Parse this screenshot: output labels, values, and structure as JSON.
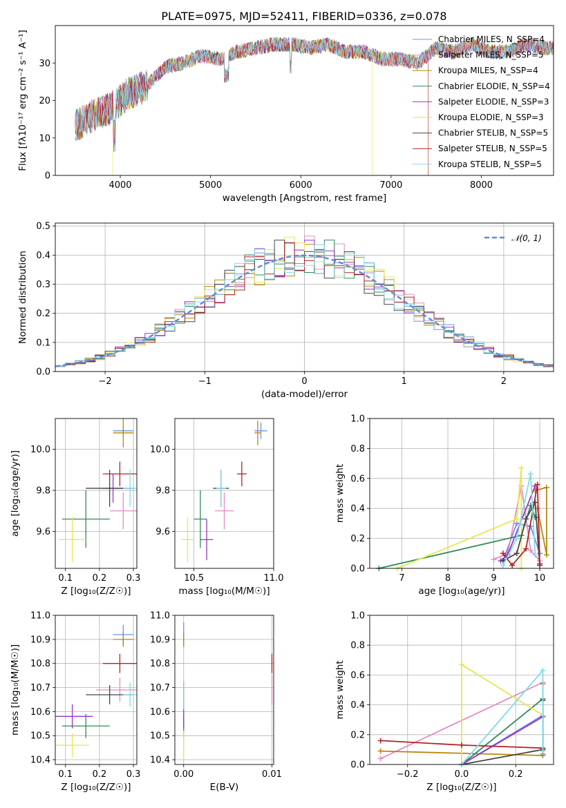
{
  "colors": [
    "#6495ed",
    "#e78ac3",
    "#b8860b",
    "#2e8b57",
    "#9932cc",
    "#e6e650",
    "#444444",
    "#b22222",
    "#7fdbe8"
  ],
  "chart_data": [
    {
      "type": "line",
      "panel": "spectrum",
      "title": "PLATE=0975, MJD=52411, FIBERID=0336, z=0.078",
      "xlabel": "wavelength [Angstrom, rest frame]",
      "ylabel": "Flux [fλ10⁻¹⁷ erg cm⁻² s⁻¹ A⁻¹]",
      "xlim": [
        3280,
        8800
      ],
      "ylim": [
        0,
        40
      ],
      "xticks": [
        "4000",
        "5000",
        "6000",
        "7000",
        "8000"
      ],
      "yticks": [
        "0",
        "10",
        "20",
        "30"
      ],
      "grid": false,
      "legend_position": "top-right",
      "x": [
        3500,
        3700,
        3900,
        4100,
        4300,
        4500,
        4700,
        4900,
        5100,
        5300,
        5500,
        5700,
        5900,
        6100,
        6300,
        6500,
        6700,
        6900,
        7100,
        7300,
        7500,
        7700,
        7900,
        8100,
        8300,
        8500,
        8700
      ],
      "y": [
        13,
        16,
        18,
        22,
        24,
        29,
        30,
        32,
        31,
        33,
        34,
        35,
        35,
        34,
        35,
        33,
        33,
        31,
        31,
        30,
        34,
        33,
        35,
        33,
        33,
        35,
        34
      ],
      "legend": [
        "Chabrier MILES, N_SSP=4",
        "Salpeter MILES, N_SSP=5",
        "Kroupa MILES, N_SSP=4",
        "Chabrier ELODIE, N_SSP=4",
        "Salpeter ELODIE, N_SSP=3",
        "Kroupa ELODIE, N_SSP=3",
        "Chabrier STELIB, N_SSP=5",
        "Salpeter STELIB, N_SSP=5",
        "Kroupa STELIB, N_SSP=5"
      ]
    },
    {
      "type": "histogram",
      "panel": "residuals",
      "xlabel": "(data-model)/error",
      "ylabel": "Normed distribution",
      "xlim": [
        -2.5,
        2.5
      ],
      "ylim": [
        0,
        0.51
      ],
      "xticks": [
        "−2",
        "−1",
        "0",
        "1",
        "2"
      ],
      "yticks": [
        "0.0",
        "0.1",
        "0.2",
        "0.3",
        "0.4",
        "0.5"
      ],
      "grid": true,
      "legend_position": "top-right",
      "legend": [
        "𝒩(0, 1)"
      ],
      "bin_width": 0.1,
      "reference_curve": "normal(0,1)"
    },
    {
      "type": "scatter",
      "panel": "age-vs-Z",
      "xlabel": "Z [log₁₀(Z/Z☉)]",
      "ylabel": "age  [log₁₀(age/yr)]",
      "xlim": [
        0.07,
        0.31
      ],
      "ylim": [
        9.42,
        10.15
      ],
      "xticks": [
        "0.1",
        "0.2",
        "0.3"
      ],
      "yticks": [
        "9.6",
        "9.8",
        "10.0"
      ],
      "grid": true,
      "points": [
        {
          "x": 0.27,
          "y": 10.09,
          "xerr": 0.03,
          "yerr": 0.02
        },
        {
          "x": 0.27,
          "y": 9.7,
          "xerr": 0.04,
          "yerr": 0.09
        },
        {
          "x": 0.27,
          "y": 10.08,
          "xerr": 0.03,
          "yerr": 0.07
        },
        {
          "x": 0.16,
          "y": 9.66,
          "xerr": 0.07,
          "yerr": 0.14
        },
        {
          "x": 0.24,
          "y": 9.81,
          "xerr": 0.03,
          "yerr": 0.07
        },
        {
          "x": 0.12,
          "y": 9.56,
          "xerr": 0.04,
          "yerr": 0.11
        },
        {
          "x": 0.23,
          "y": 9.81,
          "xerr": 0.07,
          "yerr": 0.09
        },
        {
          "x": 0.26,
          "y": 9.88,
          "xerr": 0.05,
          "yerr": 0.06
        },
        {
          "x": 0.29,
          "y": 9.81,
          "xerr": 0.02,
          "yerr": 0.09
        }
      ]
    },
    {
      "type": "scatter",
      "panel": "age-vs-mass",
      "xlabel": "mass [log₁₀(M/M☉)]",
      "xlim": [
        10.38,
        11.0
      ],
      "ylim": [
        9.42,
        10.15
      ],
      "xticks": [
        "10.5",
        "11.0"
      ],
      "yticks": [
        "9.6",
        "9.8",
        "10.0"
      ],
      "grid": true,
      "points": [
        {
          "x": 10.92,
          "y": 10.09,
          "xerr": 0.04,
          "yerr": 0.04
        },
        {
          "x": 10.69,
          "y": 9.7,
          "xerr": 0.06,
          "yerr": 0.09
        },
        {
          "x": 10.9,
          "y": 10.08,
          "xerr": 0.02,
          "yerr": 0.06
        },
        {
          "x": 10.54,
          "y": 9.66,
          "xerr": 0.04,
          "yerr": 0.14
        },
        {
          "x": 10.58,
          "y": 9.56,
          "xerr": 0.04,
          "yerr": 0.1
        },
        {
          "x": 10.46,
          "y": 9.56,
          "xerr": 0.04,
          "yerr": 0.11
        },
        {
          "x": 10.67,
          "y": 9.81,
          "xerr": 0.05,
          "yerr": 0.09
        },
        {
          "x": 10.8,
          "y": 9.88,
          "xerr": 0.03,
          "yerr": 0.06
        },
        {
          "x": 10.67,
          "y": 9.81,
          "xerr": 0.03,
          "yerr": 0.09
        }
      ]
    },
    {
      "type": "line",
      "panel": "weight-vs-age",
      "xlabel": "age  [log₁₀(age/yr)]",
      "ylabel": "mass weight",
      "xlim": [
        6.3,
        10.3
      ],
      "ylim": [
        0,
        1.0
      ],
      "xticks": [
        "7",
        "8",
        "9",
        "10"
      ],
      "yticks": [
        "0.0",
        "0.2",
        "0.4",
        "0.6",
        "0.8",
        "1.0"
      ],
      "grid": true,
      "series": [
        {
          "x": [
            9.2,
            9.5,
            9.8,
            10.0
          ],
          "y": [
            0.05,
            0.3,
            0.28,
            0.1
          ]
        },
        {
          "x": [
            9.0,
            9.3,
            9.6,
            9.8,
            10.0
          ],
          "y": [
            0.06,
            0.1,
            0.55,
            0.12,
            0.05
          ]
        },
        {
          "x": [
            9.9,
            10.15,
            10.15,
            9.95
          ],
          "y": [
            0.52,
            0.54,
            0.09,
            0.4
          ]
        },
        {
          "x": [
            6.5,
            9.6,
            9.8,
            9.9
          ],
          "y": [
            0.0,
            0.22,
            0.42,
            0.34
          ]
        },
        {
          "x": [
            9.15,
            9.3,
            9.9
          ],
          "y": [
            0.05,
            0.09,
            0.55
          ]
        },
        {
          "x": [
            6.9,
            9.5,
            9.6,
            9.6
          ],
          "y": [
            0.0,
            0.33,
            0.67,
            0.0
          ]
        },
        {
          "x": [
            9.2,
            9.5,
            9.7,
            9.9,
            10.0
          ],
          "y": [
            0.05,
            0.1,
            0.33,
            0.44,
            0.02
          ]
        },
        {
          "x": [
            9.2,
            9.4,
            9.7,
            9.95,
            10.0
          ],
          "y": [
            0.1,
            0.02,
            0.13,
            0.56,
            0.03
          ]
        },
        {
          "x": [
            9.2,
            9.5,
            9.8,
            9.9
          ],
          "y": [
            0.02,
            0.2,
            0.63,
            0.09
          ]
        }
      ]
    },
    {
      "type": "scatter",
      "panel": "mass-vs-Z",
      "xlabel": "Z [log₁₀(Z/Z☉)]",
      "ylabel": "mass [log₁₀(M/M☉)]",
      "xlim": [
        0.07,
        0.31
      ],
      "ylim": [
        10.38,
        11.0
      ],
      "xticks": [
        "0.1",
        "0.2",
        "0.3"
      ],
      "yticks": [
        "10.4",
        "10.5",
        "10.6",
        "10.7",
        "10.8",
        "10.9",
        "11.0"
      ],
      "grid": true,
      "points": [
        {
          "x": 0.27,
          "y": 10.92,
          "xerr": 0.03,
          "yerr": 0.04
        },
        {
          "x": 0.26,
          "y": 10.69,
          "xerr": 0.07,
          "yerr": 0.05
        },
        {
          "x": 0.27,
          "y": 10.9,
          "xerr": 0.03,
          "yerr": 0.03
        },
        {
          "x": 0.16,
          "y": 10.54,
          "xerr": 0.07,
          "yerr": 0.05
        },
        {
          "x": 0.12,
          "y": 10.58,
          "xerr": 0.06,
          "yerr": 0.05
        },
        {
          "x": 0.12,
          "y": 10.46,
          "xerr": 0.05,
          "yerr": 0.05
        },
        {
          "x": 0.23,
          "y": 10.67,
          "xerr": 0.07,
          "yerr": 0.04
        },
        {
          "x": 0.26,
          "y": 10.8,
          "xerr": 0.05,
          "yerr": 0.04
        },
        {
          "x": 0.29,
          "y": 10.67,
          "xerr": 0.02,
          "yerr": 0.05
        }
      ]
    },
    {
      "type": "scatter",
      "panel": "mass-vs-ebv",
      "xlabel": "E(B-V)",
      "xlim": [
        -0.001,
        0.0102
      ],
      "ylim": [
        10.38,
        11.0
      ],
      "xticks": [
        "0.00",
        "0.01"
      ],
      "yticks": [
        "10.4",
        "10.5",
        "10.6",
        "10.7",
        "10.8",
        "10.9",
        "11.0"
      ],
      "grid": true,
      "points": [
        {
          "x": 0.0,
          "y": 10.92,
          "yerr": 0.05
        },
        {
          "x": 0.01,
          "y": 10.69,
          "yerr": 0.06
        },
        {
          "x": 0.0,
          "y": 10.9,
          "yerr": 0.03
        },
        {
          "x": 0.0,
          "y": 10.54,
          "yerr": 0.05
        },
        {
          "x": 0.0,
          "y": 10.58,
          "yerr": 0.05
        },
        {
          "x": 0.0,
          "y": 10.46,
          "yerr": 0.06
        },
        {
          "x": 0.0,
          "y": 10.67,
          "yerr": 0.05
        },
        {
          "x": 0.01,
          "y": 10.8,
          "yerr": 0.04
        },
        {
          "x": 0.0,
          "y": 10.67,
          "yerr": 0.06
        }
      ]
    },
    {
      "type": "line",
      "panel": "weight-vs-Z",
      "xlabel": "Z [log₁₀(Z/Z☉)]",
      "ylabel": "mass weight",
      "xlim": [
        -0.34,
        0.34
      ],
      "ylim": [
        0,
        1.0
      ],
      "xticks": [
        "−0.2",
        "0.0",
        "0.2"
      ],
      "yticks": [
        "0.0",
        "0.2",
        "0.4",
        "0.6",
        "0.8",
        "1.0"
      ],
      "grid": true,
      "series": [
        {
          "x": [
            0.0,
            0.3,
            0.3
          ],
          "y": [
            0.0,
            0.33,
            0.07
          ]
        },
        {
          "x": [
            -0.3,
            0.3
          ],
          "y": [
            0.04,
            0.55
          ]
        },
        {
          "x": [
            -0.3,
            0.3,
            0.3
          ],
          "y": [
            0.09,
            0.06,
            0.54
          ]
        },
        {
          "x": [
            0.0,
            0.3,
            0.3
          ],
          "y": [
            0.0,
            0.44,
            0.1
          ]
        },
        {
          "x": [
            0.0,
            0.3
          ],
          "y": [
            0.0,
            0.32
          ]
        },
        {
          "x": [
            0.0,
            0.0,
            0.3
          ],
          "y": [
            0.0,
            0.67,
            0.33
          ]
        },
        {
          "x": [
            0.0,
            0.3,
            0.3
          ],
          "y": [
            0.0,
            0.1,
            0.43
          ]
        },
        {
          "x": [
            -0.3,
            0.0,
            0.3
          ],
          "y": [
            0.16,
            0.13,
            0.11
          ]
        },
        {
          "x": [
            0.0,
            0.3,
            0.3
          ],
          "y": [
            0.0,
            0.63,
            0.09
          ]
        }
      ]
    }
  ]
}
